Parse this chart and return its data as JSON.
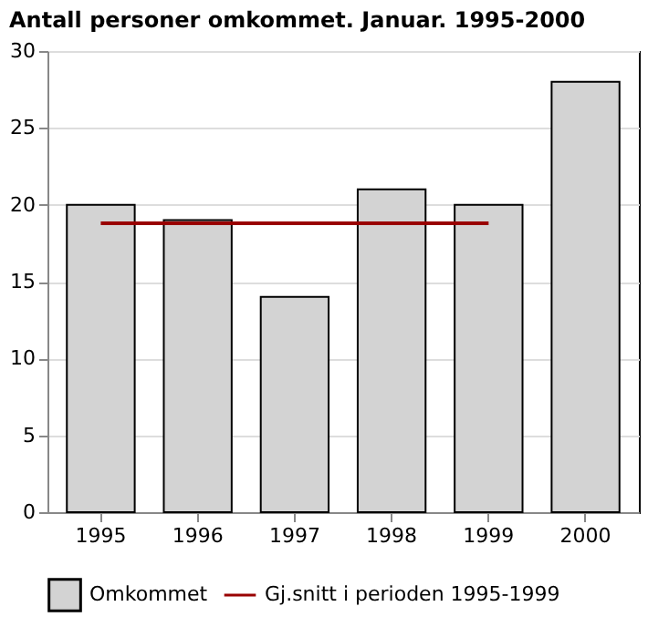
{
  "chart_data": {
    "type": "bar",
    "title": "Antall personer omkommet. Januar. 1995-2000",
    "categories": [
      "1995",
      "1996",
      "1997",
      "1998",
      "1999",
      "2000"
    ],
    "series": [
      {
        "name": "Omkommet",
        "color": "#d3d3d3",
        "values": [
          20,
          19,
          14,
          21,
          20,
          28
        ]
      },
      {
        "name": "Gj.snitt i perioden 1995-1999",
        "type": "line",
        "color": "#990000",
        "values": [
          18.8,
          18.8,
          18.8,
          18.8,
          18.8,
          null
        ]
      }
    ],
    "ylim": [
      0,
      30
    ],
    "yticks": [
      0,
      5,
      10,
      15,
      20,
      25,
      30
    ],
    "grid": "y",
    "legend": "bottom"
  }
}
